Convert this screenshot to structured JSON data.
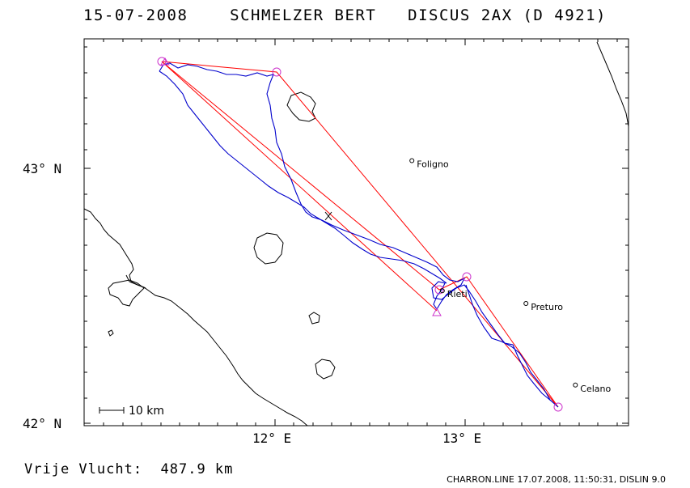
{
  "title": {
    "date": "15-07-2008",
    "pilot": "SCHMELZER BERT",
    "glider": "DISCUS 2AX (D 4921)"
  },
  "axes": {
    "lat_labels": [
      "43° N",
      "42° N"
    ],
    "lon_labels": [
      "12° E",
      "13° E"
    ]
  },
  "cities": [
    {
      "name": "Foligno",
      "lon": 12.72,
      "lat": 43.03
    },
    {
      "name": "Rieti",
      "lon": 12.88,
      "lat": 42.52
    },
    {
      "name": "Preturo",
      "lon": 13.32,
      "lat": 42.47
    },
    {
      "name": "Celano",
      "lon": 13.58,
      "lat": 42.15
    }
  ],
  "scale_bar": "10 km",
  "footer": {
    "distance": "Vrije Vlucht:  487.9 km",
    "credit": "CHARRON.LINE 17.07.2008, 11:50:31, DISLIN 9.0"
  },
  "colors": {
    "track": "#0000cc",
    "task_line": "#ff0000",
    "turnpoint": "#cc33cc",
    "frame": "#000000"
  },
  "task_points": [
    {
      "lon": 11.41,
      "lat": 43.42
    },
    {
      "lon": 12.02,
      "lat": 43.38
    },
    {
      "lon": 13.49,
      "lat": 42.06
    },
    {
      "lon": 13.01,
      "lat": 42.58
    },
    {
      "lon": 12.86,
      "lat": 42.52
    },
    {
      "lon": 11.41,
      "lat": 43.42
    }
  ]
}
